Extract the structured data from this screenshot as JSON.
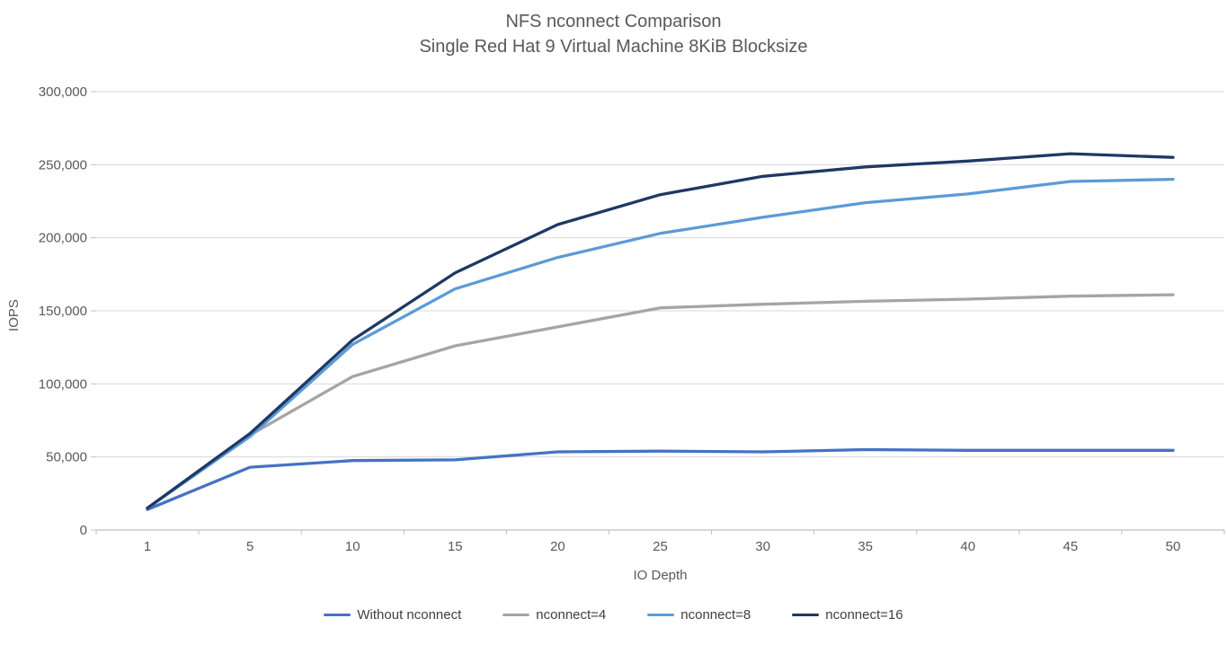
{
  "chart_data": {
    "type": "line",
    "title": "NFS nconnect Comparison",
    "subtitle": "Single Red Hat 9 Virtual Machine 8KiB Blocksize",
    "xlabel": "IO Depth",
    "ylabel": "IOPS",
    "categories": [
      1,
      5,
      10,
      15,
      20,
      25,
      30,
      35,
      40,
      45,
      50
    ],
    "y_ticks": [
      0,
      50000,
      100000,
      150000,
      200000,
      250000,
      300000
    ],
    "ylim": [
      0,
      300000
    ],
    "grid": true,
    "legend_position": "bottom",
    "series": [
      {
        "name": "Without nconnect",
        "color": "#4472C4",
        "values": [
          14000,
          43000,
          47500,
          48000,
          53500,
          54000,
          53500,
          55000,
          54500,
          54500,
          54500
        ]
      },
      {
        "name": "nconnect=4",
        "color": "#A5A5A5",
        "values": [
          15000,
          65000,
          105000,
          126000,
          139000,
          152000,
          154500,
          156500,
          158000,
          160000,
          161000
        ]
      },
      {
        "name": "nconnect=8",
        "color": "#5B9BD5",
        "values": [
          15000,
          64000,
          127000,
          165000,
          186500,
          203000,
          214000,
          224000,
          230000,
          238500,
          240000
        ]
      },
      {
        "name": "nconnect=16",
        "color": "#1F3864",
        "values": [
          15000,
          66000,
          130000,
          176000,
          209000,
          229500,
          242000,
          248500,
          252500,
          257500,
          255000
        ]
      }
    ]
  },
  "colors": {
    "gridline": "#D9D9D9",
    "axis": "#BFBFBF",
    "tick_text": "#595959",
    "legend_text": "#404040"
  }
}
